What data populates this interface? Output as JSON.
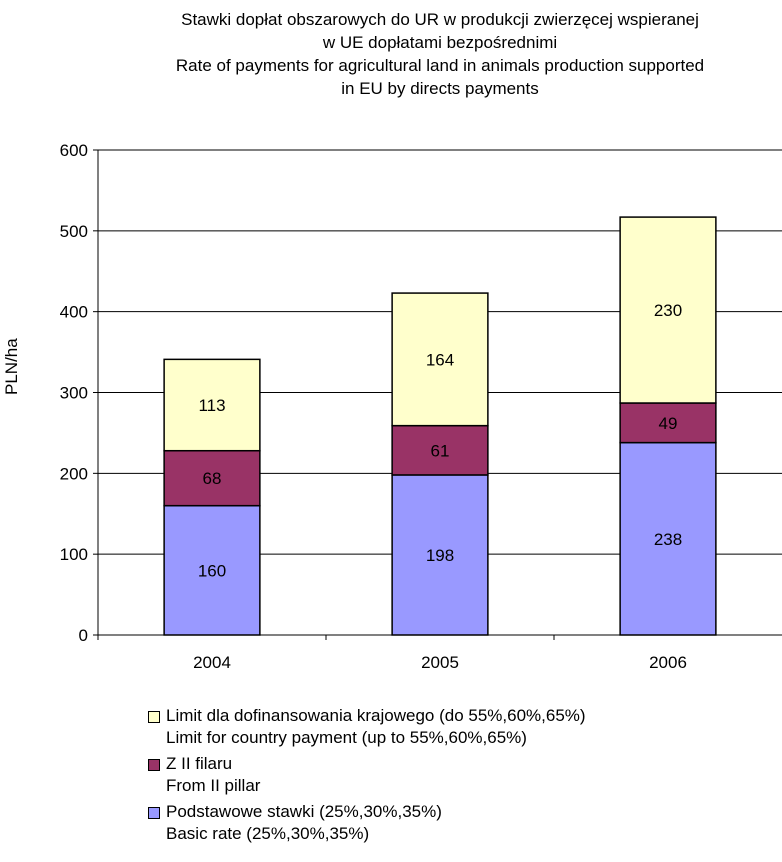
{
  "chart_data": {
    "type": "bar",
    "stacked": true,
    "title_lines": [
      "Stawki dopłat obszarowych do UR w produkcji zwierzęcej wspieranej",
      "w UE dopłatami bezpośrednimi",
      "Rate of payments for agricultural land in animals production supported",
      "in EU by directs payments"
    ],
    "xlabel": "",
    "ylabel": "PLN/ha",
    "ylim": [
      0,
      600
    ],
    "yticks": [
      0,
      100,
      200,
      300,
      400,
      500,
      600
    ],
    "categories": [
      "2004",
      "2005",
      "2006"
    ],
    "series": [
      {
        "name": "Podstawowe stawki (25%,30%,35%)",
        "name_en": "Basic rate (25%,30%,35%)",
        "color": "#9999ff",
        "values": [
          160,
          198,
          238
        ]
      },
      {
        "name": "Z II filaru",
        "name_en": "From II pillar",
        "color": "#993366",
        "values": [
          68,
          61,
          49
        ]
      },
      {
        "name": "Limit dla dofinansowania krajowego (do 55%,60%,65%)",
        "name_en": "Limit for country payment (up to 55%,60%,65%)",
        "color": "#ffffcc",
        "values": [
          113,
          164,
          230
        ]
      }
    ],
    "grid": true,
    "legend_position": "bottom"
  }
}
